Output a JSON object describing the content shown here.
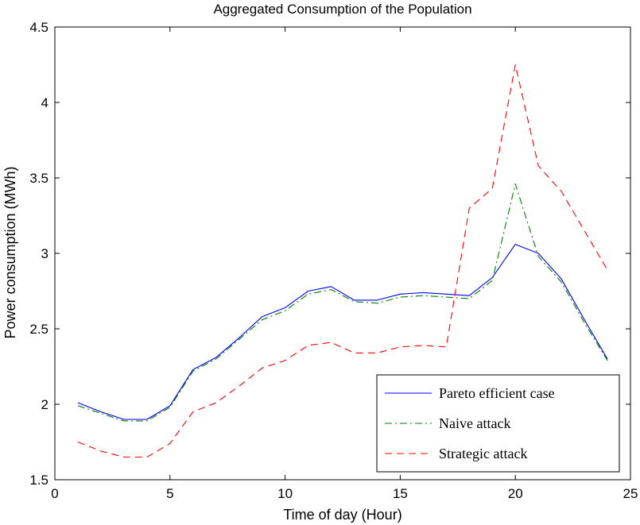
{
  "chart_data": {
    "type": "line",
    "title": "Aggregated Consumption of the Population",
    "xlabel": "Time of day (Hour)",
    "ylabel": "Power consumption (MWh)",
    "xlim": [
      0,
      25
    ],
    "ylim": [
      1.5,
      4.5
    ],
    "xticks": [
      0,
      5,
      10,
      15,
      20,
      25
    ],
    "yticks": [
      1.5,
      2,
      2.5,
      3,
      3.5,
      4,
      4.5
    ],
    "grid": false,
    "legend_position": "bottom-right",
    "x": [
      1,
      2,
      3,
      4,
      5,
      6,
      7,
      8,
      9,
      10,
      11,
      12,
      13,
      14,
      15,
      16,
      17,
      18,
      19,
      20,
      21,
      22,
      23,
      24
    ],
    "series": [
      {
        "name": "Pareto efficient case",
        "color": "#0000ff",
        "dash": "solid",
        "values": [
          2.01,
          1.95,
          1.9,
          1.9,
          1.99,
          2.23,
          2.31,
          2.44,
          2.58,
          2.64,
          2.75,
          2.78,
          2.69,
          2.69,
          2.73,
          2.74,
          2.73,
          2.72,
          2.84,
          3.06,
          3.0,
          2.83,
          2.56,
          2.3
        ]
      },
      {
        "name": "Naive attack",
        "color": "#007f00",
        "dash": "dashdot",
        "values": [
          1.99,
          1.94,
          1.89,
          1.89,
          1.98,
          2.22,
          2.3,
          2.43,
          2.56,
          2.62,
          2.73,
          2.76,
          2.68,
          2.67,
          2.71,
          2.72,
          2.71,
          2.7,
          2.82,
          3.46,
          2.98,
          2.81,
          2.54,
          2.29
        ]
      },
      {
        "name": "Strategic attack",
        "color": "#ff0000",
        "dash": "dashed",
        "values": [
          1.75,
          1.69,
          1.65,
          1.65,
          1.74,
          1.95,
          2.01,
          2.12,
          2.24,
          2.29,
          2.39,
          2.41,
          2.34,
          2.34,
          2.38,
          2.39,
          2.38,
          3.3,
          3.43,
          4.25,
          3.58,
          3.41,
          3.15,
          2.89
        ]
      }
    ]
  }
}
